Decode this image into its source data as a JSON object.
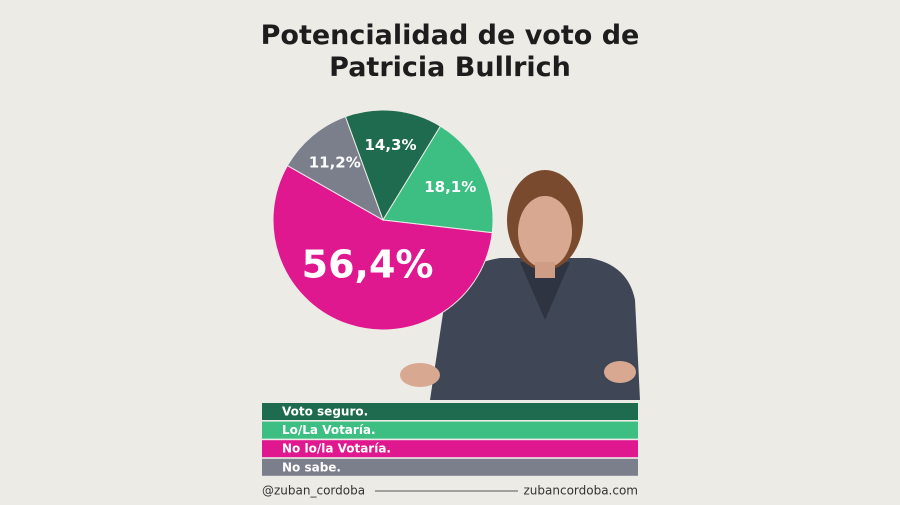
{
  "chart_data": {
    "type": "pie",
    "title": "Potencialidad de voto de Patricia Bullrich",
    "categories": [
      "Voto seguro.",
      "Lo/La Votaría.",
      "No lo/la Votaría.",
      "No sabe."
    ],
    "values": [
      14.3,
      18.1,
      56.4,
      11.2
    ],
    "value_labels": [
      "14,3%",
      "18,1%",
      "56,4%",
      "11,2%"
    ],
    "colors": [
      "#1f6b4f",
      "#3dbf84",
      "#e0188f",
      "#7b7f8c"
    ],
    "annotations": [
      "@zuban_cordoba",
      "zubancordoba.com"
    ]
  }
}
